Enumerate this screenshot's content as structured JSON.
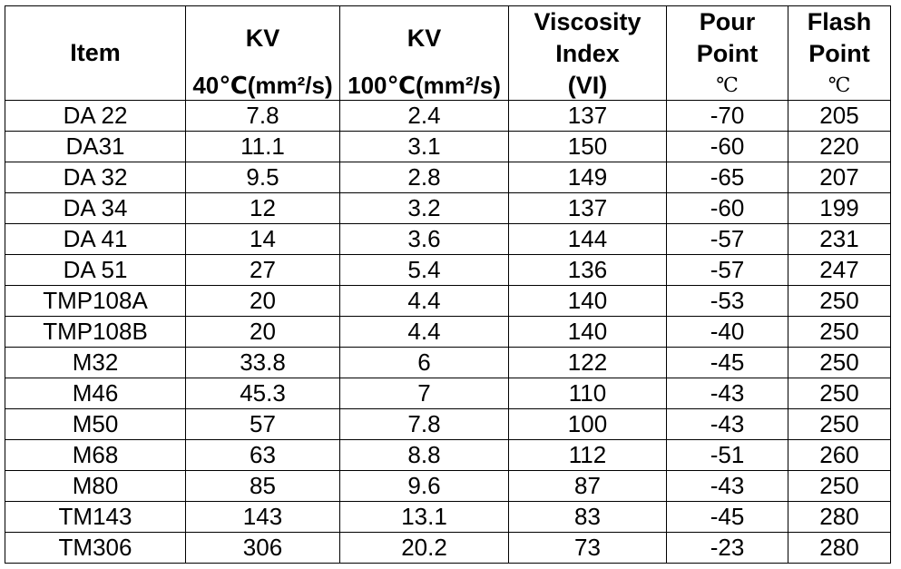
{
  "table": {
    "headers": {
      "item": "Item",
      "kv40": {
        "title": "KV",
        "unit": "40℃(mm²/s)"
      },
      "kv100": {
        "title": "KV",
        "unit": "100℃(mm²/s)"
      },
      "vi": {
        "line1": "Viscosity",
        "line2": "Index",
        "line3": "(VI)"
      },
      "pour": {
        "line1": "Pour",
        "line2": "Point",
        "unit": "℃"
      },
      "flash": {
        "line1": "Flash",
        "line2": "Point",
        "unit": "℃"
      }
    },
    "rows": [
      [
        "DA 22",
        "7.8",
        "2.4",
        "137",
        "-70",
        "205"
      ],
      [
        "DA31",
        "11.1",
        "3.1",
        "150",
        "-60",
        "220"
      ],
      [
        "DA 32",
        "9.5",
        "2.8",
        "149",
        "-65",
        "207"
      ],
      [
        "DA 34",
        "12",
        "3.2",
        "137",
        "-60",
        "199"
      ],
      [
        "DA 41",
        "14",
        "3.6",
        "144",
        "-57",
        "231"
      ],
      [
        "DA 51",
        "27",
        "5.4",
        "136",
        "-57",
        "247"
      ],
      [
        "TMP108A",
        "20",
        "4.4",
        "140",
        "-53",
        "250"
      ],
      [
        "TMP108B",
        "20",
        "4.4",
        "140",
        "-40",
        "250"
      ],
      [
        "M32",
        "33.8",
        "6",
        "122",
        "-45",
        "250"
      ],
      [
        "M46",
        "45.3",
        "7",
        "110",
        "-43",
        "250"
      ],
      [
        "M50",
        "57",
        "7.8",
        "100",
        "-43",
        "250"
      ],
      [
        "M68",
        "63",
        "8.8",
        "112",
        "-51",
        "260"
      ],
      [
        "M80",
        "85",
        "9.6",
        "87",
        "-43",
        "250"
      ],
      [
        "TM143",
        "143",
        "13.1",
        "83",
        "-45",
        "280"
      ],
      [
        "TM306",
        "306",
        "20.2",
        "73",
        "-23",
        "280"
      ]
    ]
  }
}
